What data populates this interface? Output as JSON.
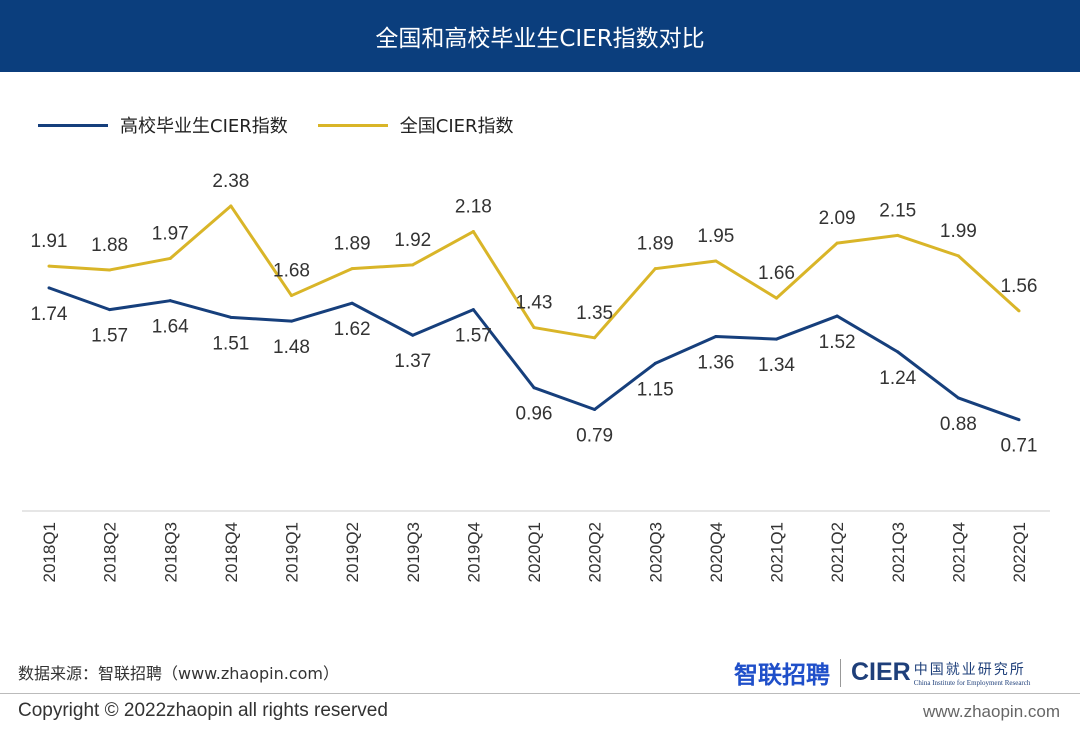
{
  "header": {
    "title": "全国和高校毕业生CIER指数对比"
  },
  "chart_data": {
    "type": "line",
    "title": "全国和高校毕业生CIER指数对比",
    "categories": [
      "2018Q1",
      "2018Q2",
      "2018Q3",
      "2018Q4",
      "2019Q1",
      "2019Q2",
      "2019Q3",
      "2019Q4",
      "2020Q1",
      "2020Q2",
      "2020Q3",
      "2020Q4",
      "2021Q1",
      "2021Q2",
      "2021Q3",
      "2021Q4",
      "2022Q1"
    ],
    "series": [
      {
        "name": "高校毕业生CIER指数",
        "color": "#163f7c",
        "values": [
          1.74,
          1.57,
          1.64,
          1.51,
          1.48,
          1.62,
          1.37,
          1.57,
          0.96,
          0.79,
          1.15,
          1.36,
          1.34,
          1.52,
          1.24,
          0.88,
          0.71
        ],
        "label_position": "below"
      },
      {
        "name": "全国CIER指数",
        "color": "#d9b528",
        "values": [
          1.91,
          1.88,
          1.97,
          2.38,
          1.68,
          1.89,
          1.92,
          2.18,
          1.43,
          1.35,
          1.89,
          1.95,
          1.66,
          2.09,
          2.15,
          1.99,
          1.56
        ],
        "label_position": "above"
      }
    ],
    "ylim": [
      0,
      3
    ],
    "y_axis_visible": false,
    "grid": false,
    "legend": "top-left",
    "xlabel": "",
    "ylabel": ""
  },
  "footer": {
    "source": "数据来源：智联招聘（www.zhaopin.com）",
    "copyright": "Copyright ©  2022zhaopin all rights reserved",
    "url": "www.zhaopin.com",
    "logo_zhaopin": "智联招聘",
    "logo_cier": "CIER",
    "logo_cier_cn": "中国就业研究所",
    "logo_cier_en": "China Institute for Employment Research"
  }
}
